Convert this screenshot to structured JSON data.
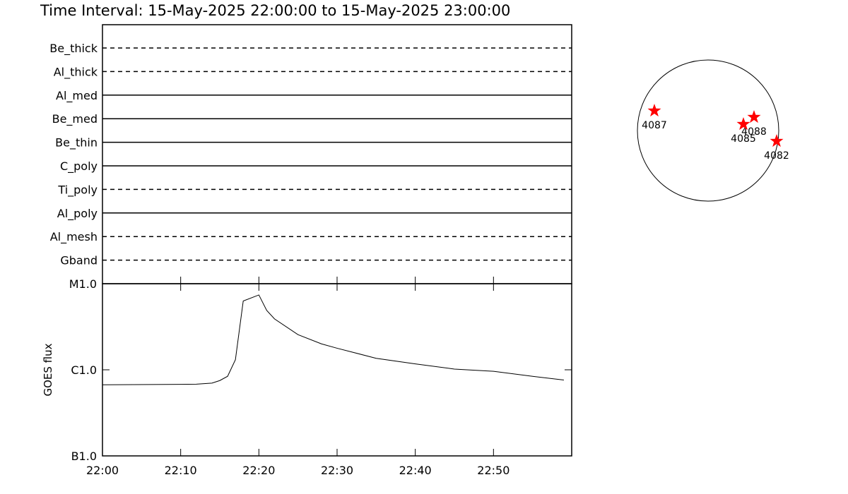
{
  "chart_data": [
    {
      "type": "timeline",
      "title": "Time Interval: 15-May-2025 22:00:00 to 15-May-2025 23:00:00",
      "series": [
        {
          "name": "Be_thick",
          "style": "dashed"
        },
        {
          "name": "Al_thick",
          "style": "dashed"
        },
        {
          "name": "Al_med",
          "style": "solid"
        },
        {
          "name": "Be_med",
          "style": "solid"
        },
        {
          "name": "Be_thin",
          "style": "solid"
        },
        {
          "name": "C_poly",
          "style": "solid"
        },
        {
          "name": "Ti_poly",
          "style": "dashed"
        },
        {
          "name": "Al_poly",
          "style": "solid"
        },
        {
          "name": "Al_mesh",
          "style": "dashed"
        },
        {
          "name": "Gband",
          "style": "dashed"
        }
      ]
    },
    {
      "type": "line",
      "y_label": "GOES flux",
      "log_scale": true,
      "color": "#000000",
      "xlim": [
        "22:00",
        "23:00"
      ],
      "xticks": [
        "22:00",
        "22:10",
        "22:20",
        "22:30",
        "22:40",
        "22:50"
      ],
      "ylim": [
        1e-07,
        1e-05
      ],
      "yticks": [
        {
          "value": 1e-07,
          "label": "B1.0"
        },
        {
          "value": 1e-06,
          "label": "C1.0"
        },
        {
          "value": 1e-05,
          "label": "M1.0"
        }
      ],
      "x": [
        "22:00",
        "22:12",
        "22:14",
        "22:15",
        "22:16",
        "22:17",
        "22:18",
        "22:20",
        "22:21",
        "22:22",
        "22:25",
        "22:28",
        "22:30",
        "22:35",
        "22:40",
        "22:45",
        "22:50",
        "22:55",
        "22:59"
      ],
      "values": [
        6.7e-07,
        6.8e-07,
        7e-07,
        7.5e-07,
        8.4e-07,
        1.31e-06,
        6.3e-06,
        7.4e-06,
        4.9e-06,
        3.9e-06,
        2.56e-06,
        2e-06,
        1.78e-06,
        1.36e-06,
        1.17e-06,
        1.02e-06,
        9.6e-07,
        8.4e-07,
        7.6e-07
      ]
    },
    {
      "type": "scatter",
      "color": "#ff0000",
      "xlim": [
        -1,
        1
      ],
      "ylim": [
        -1,
        1
      ],
      "labels": [
        "4087",
        "4088",
        "4085",
        "4082"
      ],
      "x": [
        -0.76,
        0.65,
        0.5,
        0.97
      ],
      "values": [
        0.28,
        0.19,
        0.09,
        -0.15
      ]
    }
  ]
}
